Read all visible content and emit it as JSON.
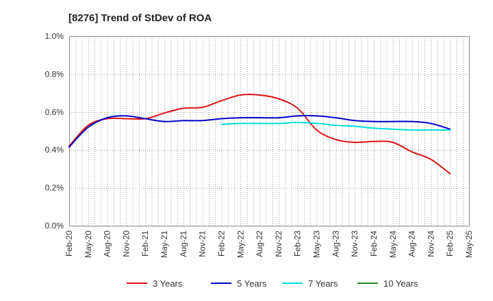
{
  "chart_data": {
    "type": "line",
    "title": "[8276]  Trend of StDev of ROA",
    "xlabel": "",
    "ylabel": "",
    "ylim": [
      0,
      1.0
    ],
    "y_ticks": [
      "0.0%",
      "0.2%",
      "0.4%",
      "0.6%",
      "0.8%",
      "1.0%"
    ],
    "x_ticks": [
      "Feb-20",
      "May-20",
      "Aug-20",
      "Nov-20",
      "Feb-21",
      "May-21",
      "Aug-21",
      "Nov-21",
      "Feb-22",
      "May-22",
      "Aug-22",
      "Nov-22",
      "Feb-23",
      "May-23",
      "Aug-23",
      "Nov-23",
      "Feb-24",
      "May-24",
      "Aug-24",
      "Nov-24",
      "Feb-25",
      "May-25"
    ],
    "grid": true,
    "legend_position": "bottom",
    "series": [
      {
        "name": "3 Years",
        "color": "#dd1111",
        "x": [
          "Feb-20",
          "May-20",
          "Aug-20",
          "Nov-20",
          "Feb-21",
          "May-21",
          "Aug-21",
          "Nov-21",
          "Feb-22",
          "May-22",
          "Aug-22",
          "Nov-22",
          "Feb-23",
          "May-23",
          "Aug-23",
          "Nov-23",
          "Feb-24",
          "May-24",
          "Aug-24",
          "Nov-24",
          "Feb-25"
        ],
        "values": [
          0.42,
          0.53,
          0.565,
          0.565,
          0.565,
          0.595,
          0.62,
          0.625,
          0.66,
          0.69,
          0.69,
          0.67,
          0.62,
          0.505,
          0.455,
          0.44,
          0.445,
          0.44,
          0.39,
          0.35,
          0.275
        ]
      },
      {
        "name": "5 Years",
        "color": "#0000cc",
        "x": [
          "Feb-20",
          "May-20",
          "Aug-20",
          "Nov-20",
          "Feb-21",
          "May-21",
          "Aug-21",
          "Nov-21",
          "Feb-22",
          "May-22",
          "Aug-22",
          "Nov-22",
          "Feb-23",
          "May-23",
          "Aug-23",
          "Nov-23",
          "Feb-24",
          "May-24",
          "Aug-24",
          "Nov-24",
          "Feb-25"
        ],
        "values": [
          0.415,
          0.52,
          0.57,
          0.58,
          0.565,
          0.55,
          0.555,
          0.555,
          0.565,
          0.57,
          0.57,
          0.57,
          0.58,
          0.58,
          0.57,
          0.555,
          0.55,
          0.55,
          0.55,
          0.54,
          0.51
        ]
      },
      {
        "name": "7 Years",
        "color": "#00dddd",
        "x": [
          "Feb-22",
          "May-22",
          "Aug-22",
          "Nov-22",
          "Feb-23",
          "May-23",
          "Aug-23",
          "Nov-23",
          "Feb-24",
          "May-24",
          "Aug-24",
          "Nov-24",
          "Feb-25"
        ],
        "values": [
          0.535,
          0.54,
          0.54,
          0.54,
          0.545,
          0.54,
          0.53,
          0.525,
          0.515,
          0.51,
          0.505,
          0.505,
          0.505
        ]
      },
      {
        "name": "10 Years",
        "color": "#228822",
        "x": [],
        "values": []
      }
    ]
  }
}
